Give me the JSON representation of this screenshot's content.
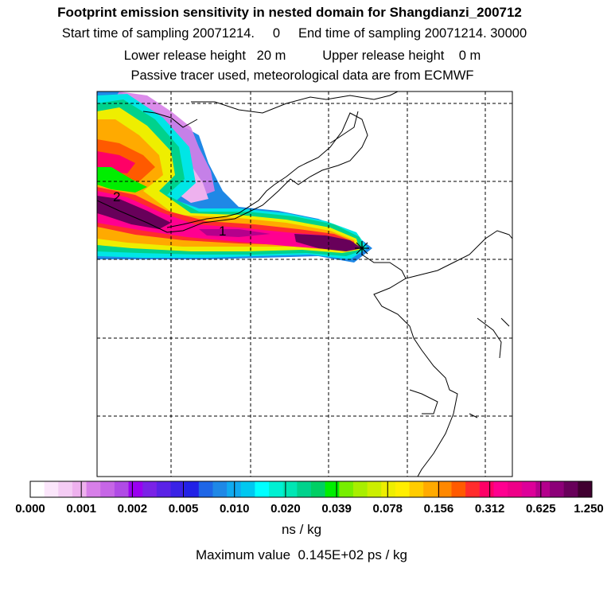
{
  "header": {
    "title": "Footprint emission sensitivity in nested domain for Shangdianzi_200712",
    "line2": "Start time of sampling 20071214.     0     End time of sampling 20071214. 30000",
    "line3": "Lower release height   20 m          Upper release height    0 m",
    "line4": "Passive tracer used, meteorological data are from ECMWF"
  },
  "map": {
    "labels": [
      "2",
      "1"
    ],
    "receptor_marker": "asterisk-icon"
  },
  "colorbar": {
    "colors": [
      "#ffffff",
      "#fbe6fb",
      "#f4ccf4",
      "#eeb1ee",
      "#d77fe8",
      "#c666e6",
      "#b04be5",
      "#9a00f0",
      "#7a22e6",
      "#5a22e6",
      "#3a22e6",
      "#2222e6",
      "#1f66e6",
      "#1f88e6",
      "#10aaf0",
      "#00c8f0",
      "#00ffff",
      "#00f0d2",
      "#00e6b4",
      "#00d28c",
      "#00cf64",
      "#00ee00",
      "#77ee00",
      "#a8ee00",
      "#ccee00",
      "#eeee00",
      "#ffee00",
      "#ffcc00",
      "#ffaa00",
      "#ff8800",
      "#ff5a00",
      "#ff2c2c",
      "#ff0066",
      "#ff0090",
      "#ee0088",
      "#dd0099",
      "#b4008c",
      "#8c0078",
      "#68005a",
      "#400030"
    ],
    "tick_labels": [
      "0.000",
      "0.001",
      "0.002",
      "0.005",
      "0.010",
      "0.020",
      "0.039",
      "0.078",
      "0.156",
      "0.312",
      "0.625",
      "1.250"
    ],
    "units": "ns / kg",
    "max_value": "Maximum value  0.145E+02 ps / kg"
  }
}
